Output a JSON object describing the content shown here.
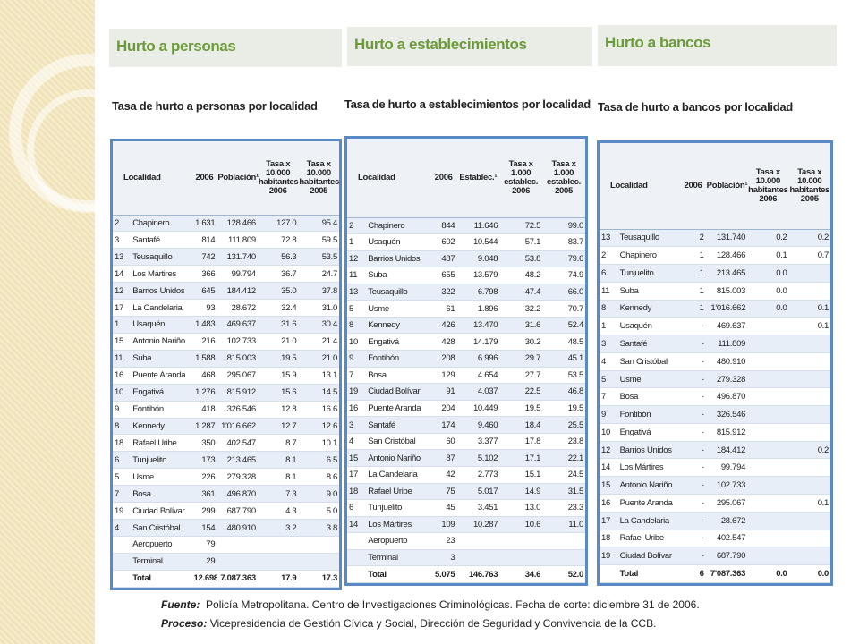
{
  "panels": [
    {
      "header": "Hurto a personas",
      "title": "Tasa de hurto a personas por localidad",
      "columns": [
        "Localidad",
        "2006",
        "Población¹",
        "Tasa x 10.000 habitantes 2006",
        "Tasa x 10.000 habitantes 2005"
      ],
      "rows": [
        [
          "2",
          "Chapinero",
          "1.631",
          "128.466",
          "127.0",
          "95.4"
        ],
        [
          "3",
          "Santafé",
          "814",
          "111.809",
          "72.8",
          "59.5"
        ],
        [
          "13",
          "Teusaquillo",
          "742",
          "131.740",
          "56.3",
          "53.5"
        ],
        [
          "14",
          "Los Mártires",
          "366",
          "99.794",
          "36.7",
          "24.7"
        ],
        [
          "12",
          "Barrios Unidos",
          "645",
          "184.412",
          "35.0",
          "37.8"
        ],
        [
          "17",
          "La Candelaria",
          "93",
          "28.672",
          "32.4",
          "31.0"
        ],
        [
          "1",
          "Usaquén",
          "1.483",
          "469.637",
          "31.6",
          "30.4"
        ],
        [
          "15",
          "Antonio Nariño",
          "216",
          "102.733",
          "21.0",
          "21.4"
        ],
        [
          "11",
          "Suba",
          "1.588",
          "815.003",
          "19.5",
          "21.0"
        ],
        [
          "16",
          "Puente Aranda",
          "468",
          "295.067",
          "15.9",
          "13.1"
        ],
        [
          "10",
          "Engativá",
          "1.276",
          "815.912",
          "15.6",
          "14.5"
        ],
        [
          "9",
          "Fontibón",
          "418",
          "326.546",
          "12.8",
          "16.6"
        ],
        [
          "8",
          "Kennedy",
          "1.287",
          "1'016.662",
          "12.7",
          "12.6"
        ],
        [
          "18",
          "Rafael Uribe",
          "350",
          "402.547",
          "8.7",
          "10.1"
        ],
        [
          "6",
          "Tunjuelito",
          "173",
          "213.465",
          "8.1",
          "6.5"
        ],
        [
          "5",
          "Usme",
          "226",
          "279.328",
          "8.1",
          "8.6"
        ],
        [
          "7",
          "Bosa",
          "361",
          "496.870",
          "7.3",
          "9.0"
        ],
        [
          "19",
          "Ciudad Bolívar",
          "299",
          "687.790",
          "4.3",
          "5.0"
        ],
        [
          "4",
          "San Cristóbal",
          "154",
          "480.910",
          "3.2",
          "3.8"
        ],
        [
          null,
          "Aeropuerto",
          "79",
          null,
          null,
          null
        ],
        [
          null,
          "Terminal",
          "29",
          null,
          null,
          null
        ]
      ],
      "total": [
        null,
        "Total",
        "12.698",
        "7.087.363",
        "17.9",
        "17.3"
      ]
    },
    {
      "header": "Hurto a establecimientos",
      "title": "Tasa de hurto a establecimientos por localidad",
      "columns": [
        "Localidad",
        "2006",
        "Establec.¹",
        "Tasa x 1.000 establec. 2006",
        "Tasa x 1.000 establec. 2005"
      ],
      "rows": [
        [
          "2",
          "Chapinero",
          "844",
          "11.646",
          "72.5",
          "99.0"
        ],
        [
          "1",
          "Usaquén",
          "602",
          "10.544",
          "57.1",
          "83.7"
        ],
        [
          "12",
          "Barrios Unidos",
          "487",
          "9.048",
          "53.8",
          "79.6"
        ],
        [
          "11",
          "Suba",
          "655",
          "13.579",
          "48.2",
          "74.9"
        ],
        [
          "13",
          "Teusaquillo",
          "322",
          "6.798",
          "47.4",
          "66.0"
        ],
        [
          "5",
          "Usme",
          "61",
          "1.896",
          "32.2",
          "70.7"
        ],
        [
          "8",
          "Kennedy",
          "426",
          "13.470",
          "31.6",
          "52.4"
        ],
        [
          "10",
          "Engativá",
          "428",
          "14.179",
          "30.2",
          "48.5"
        ],
        [
          "9",
          "Fontibón",
          "208",
          "6.996",
          "29.7",
          "45.1"
        ],
        [
          "7",
          "Bosa",
          "129",
          "4.654",
          "27.7",
          "53.5"
        ],
        [
          "19",
          "Ciudad Bolívar",
          "91",
          "4.037",
          "22.5",
          "46.8"
        ],
        [
          "16",
          "Puente Aranda",
          "204",
          "10.449",
          "19.5",
          "19.5"
        ],
        [
          "3",
          "Santafé",
          "174",
          "9.460",
          "18.4",
          "25.5"
        ],
        [
          "4",
          "San Cristóbal",
          "60",
          "3.377",
          "17.8",
          "23.8"
        ],
        [
          "15",
          "Antonio Nariño",
          "87",
          "5.102",
          "17.1",
          "22.1"
        ],
        [
          "17",
          "La Candelaria",
          "42",
          "2.773",
          "15.1",
          "24.5"
        ],
        [
          "18",
          "Rafael Uribe",
          "75",
          "5.017",
          "14.9",
          "31.5"
        ],
        [
          "6",
          "Tunjuelito",
          "45",
          "3.451",
          "13.0",
          "23.3"
        ],
        [
          "14",
          "Los Mártires",
          "109",
          "10.287",
          "10.6",
          "11.0"
        ],
        [
          null,
          "Aeropuerto",
          "23",
          null,
          null,
          null
        ],
        [
          null,
          "Terminal",
          "3",
          null,
          null,
          null
        ]
      ],
      "total": [
        null,
        "Total",
        "5.075",
        "146.763",
        "34.6",
        "52.0"
      ]
    },
    {
      "header": "Hurto a bancos",
      "title": "Tasa de hurto a bancos por localidad",
      "columns": [
        "Localidad",
        "2006",
        "Población¹",
        "Tasa x 10.000 habitantes 2006",
        "Tasa x 10.000 habitantes 2005"
      ],
      "rows": [
        [
          "13",
          "Teusaquillo",
          "2",
          "131.740",
          "0.2",
          "0.2"
        ],
        [
          "2",
          "Chapinero",
          "1",
          "128.466",
          "0.1",
          "0.7"
        ],
        [
          "6",
          "Tunjuelito",
          "1",
          "213.465",
          "0.0",
          null
        ],
        [
          "11",
          "Suba",
          "1",
          "815.003",
          "0.0",
          null
        ],
        [
          "8",
          "Kennedy",
          "1",
          "1'016.662",
          "0.0",
          "0.1"
        ],
        [
          "1",
          "Usaquén",
          "-",
          "469.637",
          null,
          "0.1"
        ],
        [
          "3",
          "Santafé",
          "-",
          "111.809",
          null,
          null
        ],
        [
          "4",
          "San Cristóbal",
          "-",
          "480.910",
          null,
          null
        ],
        [
          "5",
          "Usme",
          "-",
          "279.328",
          null,
          null
        ],
        [
          "7",
          "Bosa",
          "-",
          "496.870",
          null,
          null
        ],
        [
          "9",
          "Fontibón",
          "-",
          "326.546",
          null,
          null
        ],
        [
          "10",
          "Engativá",
          "-",
          "815.912",
          null,
          null
        ],
        [
          "12",
          "Barrios Unidos",
          "-",
          "184.412",
          null,
          "0.2"
        ],
        [
          "14",
          "Los Mártires",
          "-",
          "99.794",
          null,
          null
        ],
        [
          "15",
          "Antonio Nariño",
          "-",
          "102.733",
          null,
          null
        ],
        [
          "16",
          "Puente Aranda",
          "-",
          "295.067",
          null,
          "0.1"
        ],
        [
          "17",
          "La Candelaria",
          "-",
          "28.672",
          null,
          null
        ],
        [
          "18",
          "Rafael Uribe",
          "-",
          "402.547",
          null,
          null
        ],
        [
          "19",
          "Ciudad Bolívar",
          "-",
          "687.790",
          null,
          null
        ]
      ],
      "total": [
        null,
        "Total",
        "6",
        "7'087.363",
        "0.0",
        "0.0"
      ]
    }
  ],
  "footer": {
    "source_label": "Fuente:",
    "source": "Policía Metropolitana. Centro de Investigaciones Criminológicas. Fecha de corte: diciembre 31 de 2006.",
    "process_label": "Proceso:",
    "process": "Vicepresidencia de Gestión Cívica y Social, Dirección de Seguridad y Convivencia de la CCB."
  }
}
